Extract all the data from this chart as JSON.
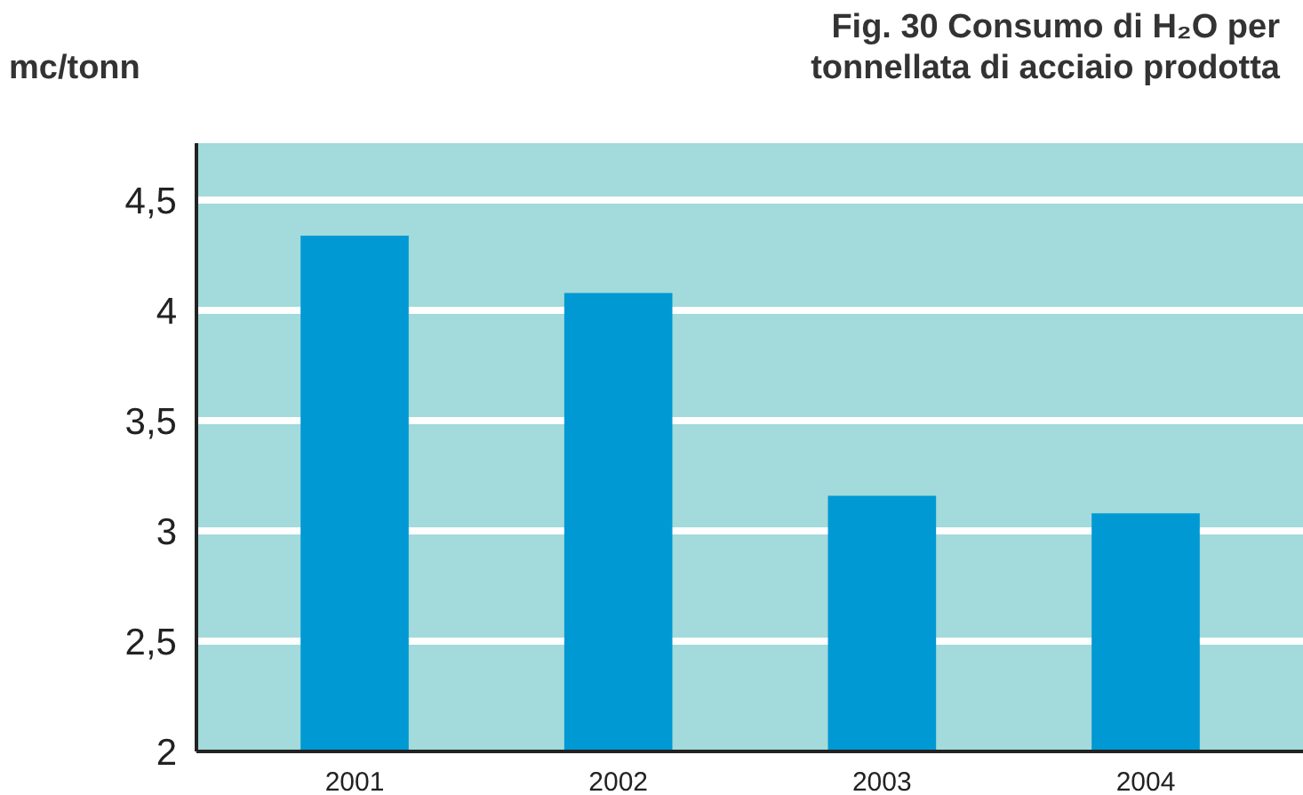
{
  "chart_data": {
    "type": "bar",
    "title": "Fig. 30  Consumo di H₂O per\ntonnellata di acciaio prodotta",
    "ylabel": "mc/tonn",
    "categories": [
      "2001",
      "2002",
      "2003",
      "2004"
    ],
    "values": [
      4.34,
      4.08,
      3.16,
      3.08
    ],
    "color": "#0099d4",
    "ylim": [
      2,
      4.76
    ],
    "yticks": [
      2,
      {
        "value": 2.5,
        "label": "2,5"
      },
      3,
      {
        "value": 3.5,
        "label": "3,5"
      },
      4,
      {
        "value": 4.5,
        "label": "4,5"
      }
    ],
    "grid": "y"
  }
}
